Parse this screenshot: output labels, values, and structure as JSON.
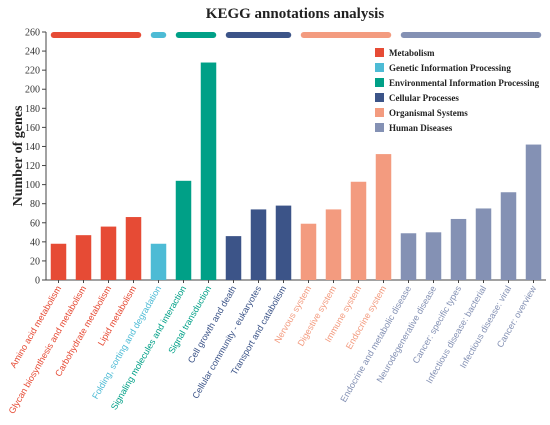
{
  "chart_data": {
    "type": "bar",
    "title": "KEGG annotations analysis",
    "xlabel": "",
    "ylabel": "Number of genes",
    "ylim": [
      0,
      260
    ],
    "yticks": [
      0,
      20,
      40,
      60,
      80,
      100,
      120,
      140,
      160,
      180,
      200,
      220,
      240,
      260
    ],
    "grid": false,
    "legend_position": "top-right",
    "groups": [
      {
        "name": "Metabolism",
        "color": "#E64B35"
      },
      {
        "name": "Genetic Information Processing",
        "color": "#4DBBD5"
      },
      {
        "name": "Environmental Information Processing",
        "color": "#00A087"
      },
      {
        "name": "Cellular Processes",
        "color": "#3C5488"
      },
      {
        "name": "Organismal Systems",
        "color": "#F39B7F"
      },
      {
        "name": "Human Diseases",
        "color": "#8491B4"
      }
    ],
    "categories": [
      "Amino acid metabolism",
      "Glycan biosynthesis and metabolism",
      "Carbohydrate metabolism",
      "Lipid metabolism",
      "Folding, sorting and degradation",
      "Signaling molecules and interaction",
      "Signal transduction",
      "Cell growth and death",
      "Cellular community - eukaryotes",
      "Transport and catabolism",
      "Nervous system",
      "Digestive system",
      "Immune system",
      "Endocrine system",
      "Endocrine and metabolic disease",
      "Neurodegenerative disease",
      "Cancer: specific types",
      "Infectious disease: bacterial",
      "Infectious disease: viral",
      "Cancer: overview"
    ],
    "values": [
      38,
      47,
      56,
      66,
      38,
      104,
      228,
      46,
      74,
      78,
      59,
      74,
      103,
      132,
      49,
      50,
      64,
      75,
      92,
      142
    ],
    "category_group": [
      0,
      0,
      0,
      0,
      1,
      2,
      2,
      3,
      3,
      3,
      4,
      4,
      4,
      4,
      5,
      5,
      5,
      5,
      5,
      5
    ]
  }
}
